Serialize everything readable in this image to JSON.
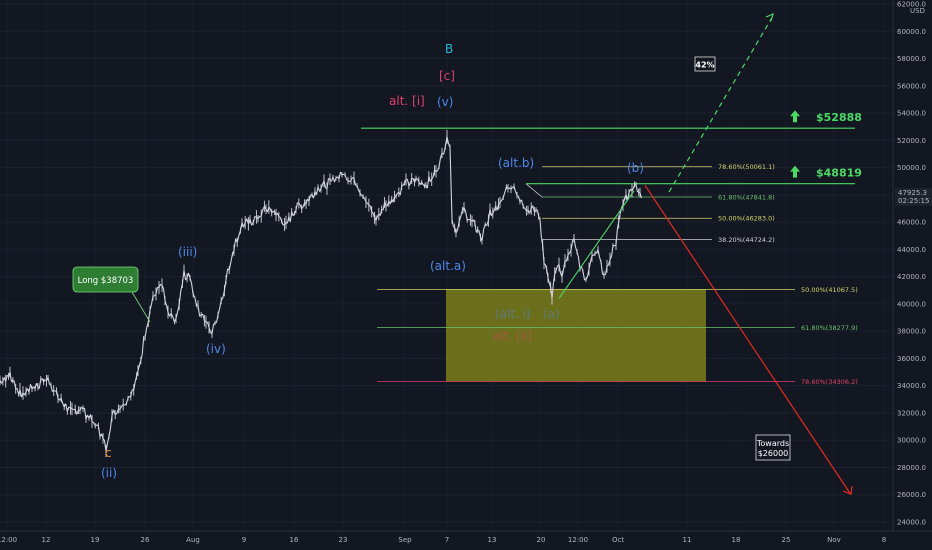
{
  "chart_data": {
    "type": "candlestick",
    "title": "",
    "y_unit": "USD",
    "ylim": [
      23000,
      62000
    ],
    "y_ticks": [
      "24000.0",
      "26000.0",
      "28000.0",
      "30000.0",
      "32000.0",
      "34000.0",
      "36000.0",
      "38000.0",
      "40000.0",
      "42000.0",
      "44000.0",
      "46000.0",
      "48000.0",
      "50000.0",
      "52000.0",
      "54000.0",
      "56000.0",
      "58000.0",
      "60000.0",
      "62000.0"
    ],
    "x_ticks": [
      "12:00",
      "12",
      "19",
      "26",
      "Aug",
      "9",
      "16",
      "23",
      "Sep",
      "7",
      "13",
      "20",
      "12:00",
      "Oct",
      "11",
      "18",
      "25",
      "Nov",
      "8"
    ],
    "price_series": {
      "start": 33800,
      "points": [
        [
          0,
          34400
        ],
        [
          10,
          34800
        ],
        [
          20,
          33400
        ],
        [
          35,
          33900
        ],
        [
          48,
          34500
        ],
        [
          58,
          33100
        ],
        [
          72,
          32000
        ],
        [
          80,
          32400
        ],
        [
          92,
          31400
        ],
        [
          100,
          30600
        ],
        [
          106,
          29400
        ],
        [
          112,
          31800
        ],
        [
          120,
          32600
        ],
        [
          128,
          33000
        ],
        [
          138,
          34800
        ],
        [
          145,
          37800
        ],
        [
          150,
          39600
        ],
        [
          156,
          41000
        ],
        [
          162,
          41400
        ],
        [
          168,
          39200
        ],
        [
          176,
          38600
        ],
        [
          184,
          42200
        ],
        [
          190,
          41800
        ],
        [
          198,
          39600
        ],
        [
          206,
          38800
        ],
        [
          212,
          37900
        ],
        [
          218,
          39200
        ],
        [
          226,
          41800
        ],
        [
          234,
          44200
        ],
        [
          242,
          45800
        ],
        [
          250,
          46000
        ],
        [
          258,
          46400
        ],
        [
          266,
          47100
        ],
        [
          276,
          46600
        ],
        [
          286,
          45800
        ],
        [
          296,
          47000
        ],
        [
          306,
          47500
        ],
        [
          318,
          48500
        ],
        [
          330,
          48900
        ],
        [
          342,
          49400
        ],
        [
          354,
          49200
        ],
        [
          366,
          47600
        ],
        [
          376,
          46300
        ],
        [
          386,
          47400
        ],
        [
          396,
          48000
        ],
        [
          406,
          48800
        ],
        [
          416,
          49000
        ],
        [
          426,
          48700
        ],
        [
          436,
          49800
        ],
        [
          442,
          50800
        ],
        [
          447,
          52400
        ],
        [
          450,
          51800
        ],
        [
          452,
          46200
        ],
        [
          456,
          45500
        ],
        [
          464,
          46800
        ],
        [
          472,
          46000
        ],
        [
          482,
          44800
        ],
        [
          490,
          46600
        ],
        [
          500,
          47200
        ],
        [
          508,
          48500
        ],
        [
          514,
          48800
        ],
        [
          520,
          47600
        ],
        [
          528,
          47000
        ],
        [
          536,
          46800
        ],
        [
          540,
          46200
        ],
        [
          544,
          43200
        ],
        [
          548,
          41800
        ],
        [
          552,
          40500
        ],
        [
          556,
          42800
        ],
        [
          562,
          42300
        ],
        [
          568,
          43800
        ],
        [
          574,
          44600
        ],
        [
          580,
          42800
        ],
        [
          586,
          41700
        ],
        [
          592,
          43500
        ],
        [
          598,
          44200
        ],
        [
          604,
          41800
        ],
        [
          610,
          43500
        ],
        [
          616,
          44600
        ],
        [
          620,
          46800
        ],
        [
          626,
          47800
        ],
        [
          632,
          48200
        ],
        [
          636,
          48600
        ],
        [
          640,
          47900
        ],
        [
          643,
          47925
        ]
      ]
    },
    "last_price": "47925.3",
    "countdown": "02:25:15",
    "fib_levels_upper": [
      {
        "label": "78.60%(50061.1)",
        "value": 50061.1,
        "color": "#d4d46a"
      },
      {
        "label": "61.80%(47841.8)",
        "value": 47841.8,
        "color": "#6dc36d"
      },
      {
        "label": "50.00%(46283.0)",
        "value": 46283.0,
        "color": "#d4d46a"
      },
      {
        "label": "38.20%(44724.2)",
        "value": 44724.2,
        "color": "#cfcfcf"
      }
    ],
    "fib_levels_lower": [
      {
        "label": "50.00%(41067.5)",
        "value": 41067.5,
        "color": "#d4d46a"
      },
      {
        "label": "61.80%(38277.9)",
        "value": 38277.9,
        "color": "#6dc36d"
      },
      {
        "label": "78.60%(34306.2)",
        "value": 34306.2,
        "color": "#e0416a"
      }
    ],
    "resistance_levels": [
      {
        "label": "$52888",
        "value": 52888
      },
      {
        "label": "$48819",
        "value": 48819
      }
    ],
    "annotations": {
      "wave_labels": {
        "B": "B",
        "c_bracket": "[c]",
        "alt_i": "alt. [i]",
        "v_paren": "(v)",
        "alt_b": "(alt.b)",
        "b_paren": "(b)",
        "alt_a": "(alt.a)",
        "iii": "(iii)",
        "iv": "(iv)",
        "ii": "(ii)",
        "c": "c",
        "faded_1": "(alt. i)",
        "faded_2": "(a)",
        "faded_3": "alt. [ii]"
      },
      "long_label": "Long $38703",
      "probability": "42%",
      "target_line1": "Towards",
      "target_line2": "$26000"
    }
  }
}
